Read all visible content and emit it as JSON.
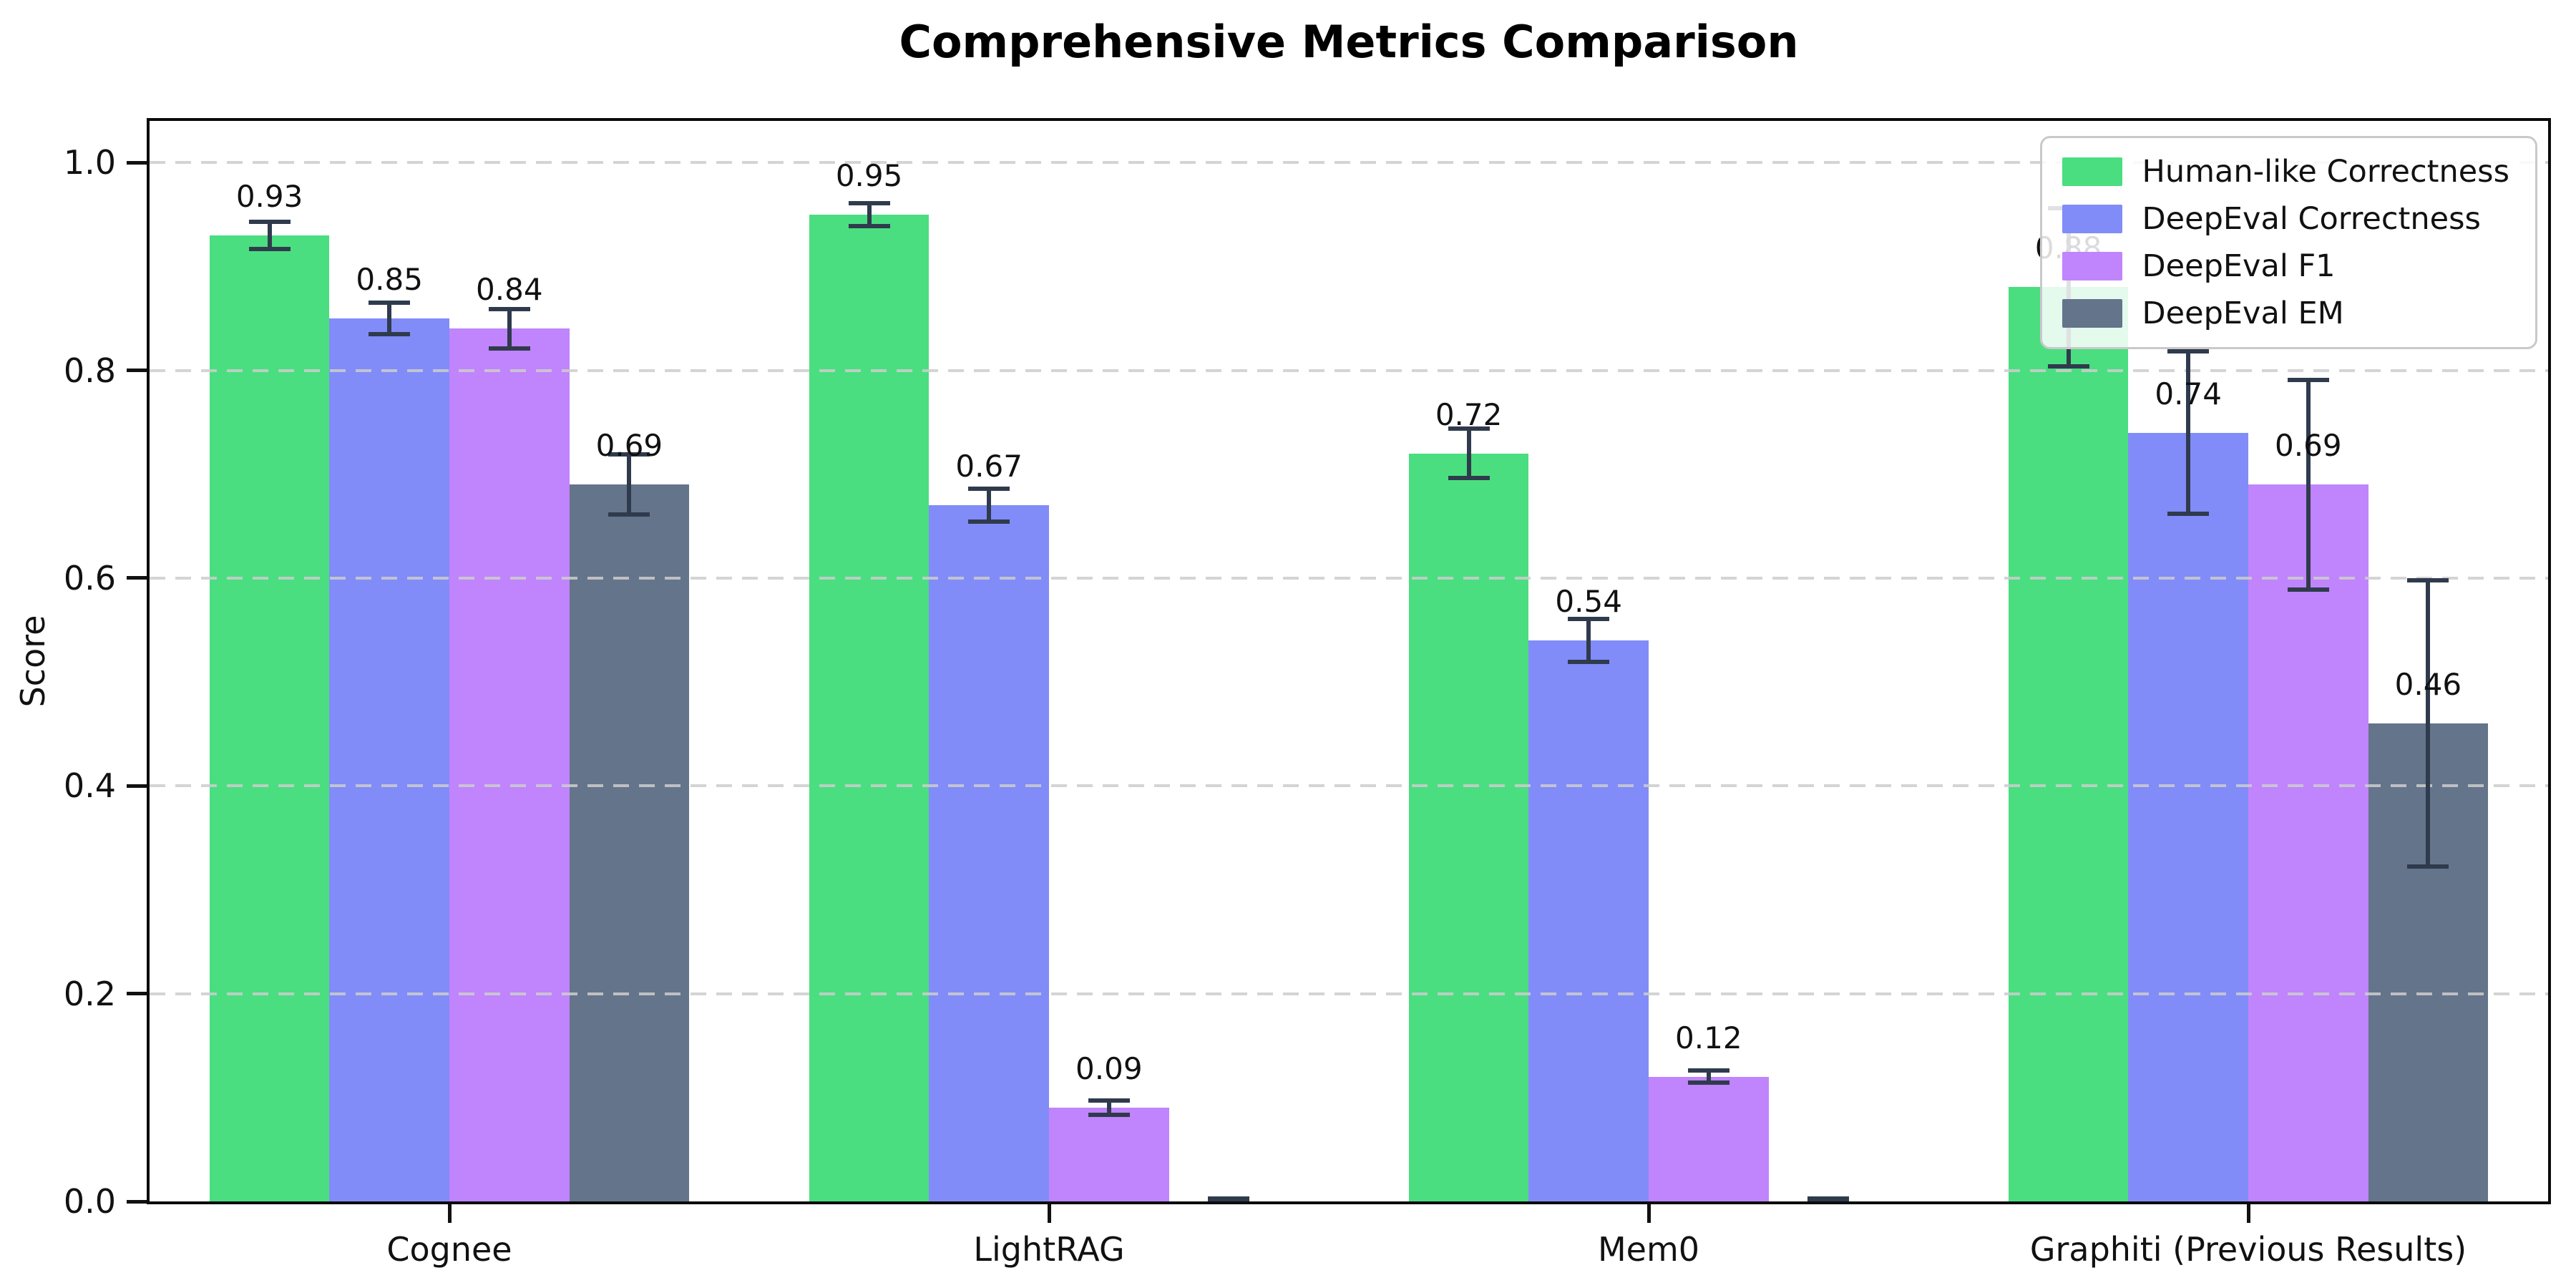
{
  "title": "Comprehensive Metrics Comparison",
  "ylabel": "Score",
  "chart_data": {
    "type": "bar",
    "title": "Comprehensive Metrics Comparison",
    "xlabel": "",
    "ylabel": "Score",
    "categories": [
      "Cognee",
      "LightRAG",
      "Mem0",
      "Graphiti (Previous Results)"
    ],
    "series": [
      {
        "name": "Human-like Correctness",
        "color": "#4ade80",
        "values": [
          0.93,
          0.95,
          0.72,
          0.88
        ],
        "errors": [
          0.015,
          0.013,
          0.026,
          0.078
        ],
        "labels": [
          "0.93",
          "0.95",
          "0.72",
          "0.88"
        ]
      },
      {
        "name": "DeepEval Correctness",
        "color": "#818cf8",
        "values": [
          0.85,
          0.67,
          0.54,
          0.74
        ],
        "errors": [
          0.017,
          0.018,
          0.023,
          0.08
        ],
        "labels": [
          "0.85",
          "0.67",
          "0.54",
          "0.74"
        ]
      },
      {
        "name": "DeepEval F1",
        "color": "#c084fc",
        "values": [
          0.84,
          0.09,
          0.12,
          0.69
        ],
        "errors": [
          0.021,
          0.009,
          0.008,
          0.103
        ],
        "labels": [
          "0.84",
          "0.09",
          "0.12",
          "0.69"
        ]
      },
      {
        "name": "DeepEval EM",
        "color": "#64748b",
        "values": [
          0.69,
          0.0,
          0.0,
          0.46
        ],
        "errors": [
          0.031,
          0.005,
          0.005,
          0.14
        ],
        "labels": [
          "0.69",
          "",
          "",
          "0.46"
        ]
      }
    ],
    "yticks": [
      0.0,
      0.2,
      0.4,
      0.6,
      0.8,
      1.0
    ],
    "ytick_labels": [
      "0.0",
      "0.2",
      "0.4",
      "0.6",
      "0.8",
      "1.0"
    ],
    "ylim": [
      0,
      1.04
    ],
    "grid": "horizontal-dashed",
    "grid_color": "#cdcdcd",
    "legend_position": "upper-right",
    "errorbar_color": "#2f3b4d",
    "background_color": "#ffffff",
    "bar_group_width_fraction": 0.8
  }
}
